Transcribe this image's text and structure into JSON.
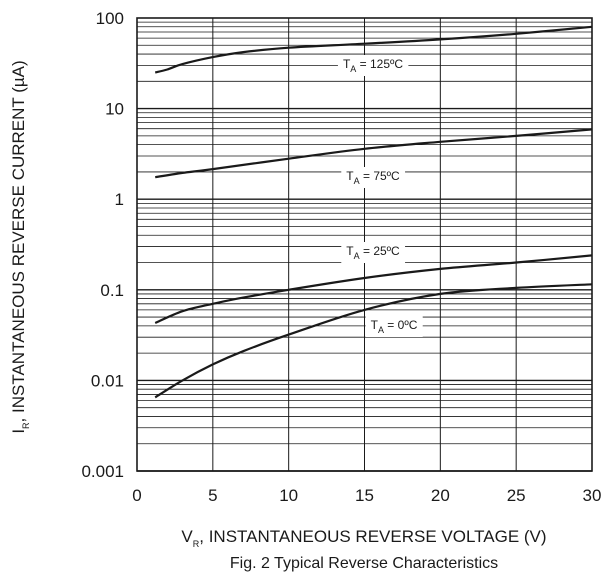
{
  "chart_data": {
    "type": "line",
    "y_scale": "log",
    "grid": true,
    "xlim": [
      0,
      30
    ],
    "ylim": [
      0.001,
      100
    ],
    "x_ticks": [
      "0",
      "5",
      "10",
      "15",
      "20",
      "25",
      "30"
    ],
    "y_ticks": [
      "0.001",
      "0.01",
      "0.1",
      "1",
      "10",
      "100"
    ],
    "ylabel": {
      "main": "I",
      "sub": "R",
      "rest": ", INSTANTANEOUS REVERSE CURRENT (µA)"
    },
    "xlabel": {
      "main": "V",
      "sub": "R",
      "rest": ", INSTANTANEOUS REVERSE VOLTAGE (V)"
    },
    "caption": "Fig. 2  Typical Reverse Characteristics",
    "series": [
      {
        "name": "T_A = 125ºC",
        "label_main": "T",
        "label_sub": "A",
        "label_rest": " = 125ºC",
        "x": [
          1.2,
          2,
          3,
          5,
          7,
          10,
          15,
          20,
          25,
          30
        ],
        "y": [
          25,
          27,
          31,
          37,
          42,
          47,
          52,
          58,
          67,
          80
        ]
      },
      {
        "name": "T_A = 75ºC",
        "label_main": "T",
        "label_sub": "A",
        "label_rest": " = 75ºC",
        "x": [
          1.2,
          3,
          5,
          10,
          15,
          20,
          25,
          30
        ],
        "y": [
          1.75,
          1.95,
          2.15,
          2.8,
          3.6,
          4.3,
          5.0,
          5.9
        ]
      },
      {
        "name": "T_A = 25ºC",
        "label_main": "T",
        "label_sub": "A",
        "label_rest": " = 25ºC",
        "x": [
          1.2,
          3,
          5,
          7,
          10,
          15,
          20,
          25,
          30
        ],
        "y": [
          0.043,
          0.058,
          0.07,
          0.082,
          0.1,
          0.135,
          0.17,
          0.2,
          0.24
        ]
      },
      {
        "name": "T_A = 0ºC",
        "label_main": "T",
        "label_sub": "A",
        "label_rest": " = 0ºC",
        "x": [
          1.2,
          3,
          5,
          7,
          10,
          15,
          20,
          25,
          30
        ],
        "y": [
          0.0065,
          0.01,
          0.015,
          0.021,
          0.032,
          0.06,
          0.09,
          0.105,
          0.115
        ]
      }
    ]
  }
}
